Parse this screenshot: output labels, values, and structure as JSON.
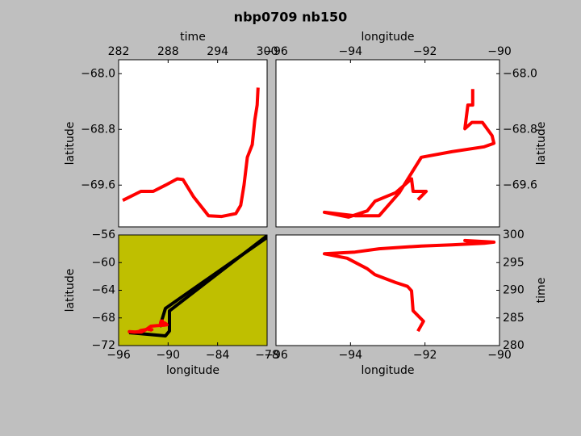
{
  "title": "nbp0709 nb150",
  "chart_data": [
    {
      "type": "line",
      "xlabel": "time",
      "ylabel": "latitude",
      "x_axis_position": "top",
      "y_axis_position": "left",
      "background": "#ffffff",
      "xlim": [
        282,
        300
      ],
      "xticks": [
        282,
        288,
        294,
        300
      ],
      "ylim": [
        -70.2,
        -67.8
      ],
      "yticks": [
        {
          "value": -68.0,
          "label": "−68.0"
        },
        {
          "value": -68.8,
          "label": "−68.8"
        },
        {
          "value": -69.6,
          "label": "−69.6"
        }
      ],
      "series": [
        {
          "color": "#ff0000",
          "x": [
            282.5,
            284.7,
            286.2,
            287.7,
            289.1,
            289.8,
            291.1,
            292.9,
            294.5,
            296.2,
            296.8,
            297.2,
            297.6,
            298.2,
            298.5,
            298.8,
            298.9
          ],
          "values": [
            -69.82,
            -69.69,
            -69.69,
            -69.6,
            -69.51,
            -69.52,
            -69.77,
            -70.04,
            -70.05,
            -70.01,
            -69.89,
            -69.6,
            -69.2,
            -69.02,
            -68.67,
            -68.45,
            -68.2
          ]
        }
      ]
    },
    {
      "type": "line",
      "xlabel": "longitude",
      "ylabel": "latitude",
      "x_axis_position": "top",
      "y_axis_position": "right",
      "background": "#ffffff",
      "xlim": [
        -96,
        -90
      ],
      "xticks": [
        {
          "value": -96,
          "label": "−96"
        },
        {
          "value": -94,
          "label": "−94"
        },
        {
          "value": -92,
          "label": "−92"
        },
        {
          "value": -90,
          "label": "−90"
        }
      ],
      "ylim": [
        -70.2,
        -67.8
      ],
      "yticks": [
        {
          "value": -68.0,
          "label": "−68.0"
        },
        {
          "value": -68.8,
          "label": "−68.8"
        },
        {
          "value": -69.6,
          "label": "−69.6"
        }
      ],
      "series": [
        {
          "color": "#ff0000",
          "x": [
            -92.19,
            -91.97,
            -92.32,
            -92.36,
            -92.79,
            -93.34,
            -93.55,
            -94.05,
            -94.7,
            -93.88,
            -93.23,
            -92.69,
            -92.1,
            -91.28,
            -90.41,
            -90.15,
            -90.2,
            -90.46,
            -90.74,
            -90.93,
            -90.85,
            -90.72,
            -90.72
          ],
          "values": [
            -69.81,
            -69.69,
            -69.69,
            -69.51,
            -69.71,
            -69.83,
            -69.97,
            -70.06,
            -69.99,
            -70.04,
            -70.04,
            -69.71,
            -69.2,
            -69.12,
            -69.05,
            -69.0,
            -68.89,
            -68.7,
            -68.7,
            -68.79,
            -68.45,
            -68.45,
            -68.22
          ]
        }
      ]
    },
    {
      "type": "line",
      "xlabel": "longitude",
      "ylabel": "latitude",
      "x_axis_position": "bottom",
      "y_axis_position": "left",
      "background": "#bfbf00",
      "xlim": [
        -96,
        -78
      ],
      "xticks": [
        {
          "value": -96,
          "label": "−96"
        },
        {
          "value": -90,
          "label": "−90"
        },
        {
          "value": -84,
          "label": "−84"
        },
        {
          "value": -78,
          "label": "−78"
        }
      ],
      "ylim": [
        -72,
        -56
      ],
      "yticks": [
        {
          "value": -72,
          "label": "−72"
        },
        {
          "value": -68,
          "label": "−68"
        },
        {
          "value": -64,
          "label": "−64"
        },
        {
          "value": -60,
          "label": "−60"
        },
        {
          "value": -56,
          "label": "−56"
        }
      ],
      "series": [
        {
          "color": "#000000",
          "x": [
            -94.73,
            -90.33,
            -89.84,
            -89.84,
            -78.0
          ],
          "values": [
            -70.13,
            -70.6,
            -69.9,
            -66.98,
            -56.11
          ]
        },
        {
          "color": "#000000",
          "x": [
            -91.01,
            -90.33,
            -78.0
          ],
          "values": [
            -69.31,
            -66.63,
            -56.35
          ]
        },
        {
          "color": "#ff0000",
          "x": [
            -92.19,
            -91.97,
            -92.32,
            -92.36,
            -92.79,
            -93.34,
            -93.55,
            -94.05,
            -94.7,
            -93.88,
            -93.23,
            -92.69,
            -92.1,
            -91.28,
            -90.41,
            -90.15,
            -90.2,
            -90.46,
            -90.74,
            -90.93,
            -90.85,
            -90.72,
            -90.72
          ],
          "values": [
            -69.81,
            -69.69,
            -69.69,
            -69.51,
            -69.71,
            -69.83,
            -69.97,
            -70.06,
            -69.99,
            -70.04,
            -70.04,
            -69.71,
            -69.2,
            -69.12,
            -69.05,
            -69.0,
            -68.89,
            -68.7,
            -68.7,
            -68.79,
            -68.45,
            -68.45,
            -68.22
          ]
        }
      ]
    },
    {
      "type": "line",
      "xlabel": "longitude",
      "ylabel": "time",
      "x_axis_position": "bottom",
      "y_axis_position": "right",
      "background": "#ffffff",
      "xlim": [
        -96,
        -90
      ],
      "xticks": [
        {
          "value": -96,
          "label": "−96"
        },
        {
          "value": -94,
          "label": "−94"
        },
        {
          "value": -92,
          "label": "−92"
        },
        {
          "value": -90,
          "label": "−90"
        }
      ],
      "ylim": [
        280,
        300
      ],
      "yticks": [
        280,
        285,
        290,
        295,
        300
      ],
      "series": [
        {
          "color": "#ff0000",
          "x": [
            -92.19,
            -92.04,
            -92.32,
            -92.36,
            -92.47,
            -92.79,
            -93.34,
            -93.55,
            -94.09,
            -94.7,
            -93.88,
            -93.23,
            -92.1,
            -91.28,
            -90.41,
            -90.15,
            -90.93,
            -90.72
          ],
          "values": [
            282.6,
            284.4,
            286.3,
            289.9,
            290.7,
            291.4,
            292.8,
            293.9,
            295.8,
            296.6,
            296.9,
            297.5,
            298.0,
            298.2,
            298.5,
            298.7,
            299.0,
            298.7
          ]
        }
      ]
    }
  ]
}
